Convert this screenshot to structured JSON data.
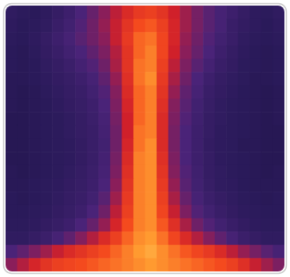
{
  "chart_data": {
    "type": "heatmap",
    "tick_labels": false,
    "color_range": [
      0,
      100
    ],
    "z": [
      [
        18,
        16,
        15,
        17,
        20,
        24,
        30,
        38,
        48,
        58,
        66,
        72,
        74,
        70,
        62,
        52,
        42,
        34,
        28,
        24,
        20,
        17,
        16,
        18
      ],
      [
        17,
        15,
        16,
        18,
        22,
        26,
        32,
        40,
        50,
        60,
        70,
        78,
        80,
        74,
        64,
        52,
        42,
        34,
        28,
        22,
        19,
        17,
        15,
        17
      ],
      [
        16,
        15,
        17,
        20,
        24,
        28,
        34,
        40,
        48,
        60,
        72,
        82,
        84,
        76,
        64,
        50,
        40,
        32,
        26,
        22,
        18,
        16,
        15,
        16
      ],
      [
        15,
        14,
        16,
        19,
        22,
        26,
        30,
        36,
        44,
        56,
        70,
        82,
        86,
        76,
        62,
        48,
        38,
        30,
        24,
        20,
        17,
        15,
        14,
        15
      ],
      [
        15,
        14,
        15,
        18,
        20,
        23,
        27,
        32,
        40,
        54,
        70,
        84,
        86,
        74,
        58,
        44,
        34,
        27,
        22,
        19,
        16,
        15,
        14,
        15
      ],
      [
        14,
        14,
        15,
        17,
        19,
        21,
        24,
        28,
        36,
        50,
        68,
        84,
        88,
        72,
        54,
        40,
        30,
        24,
        20,
        18,
        16,
        14,
        14,
        15
      ],
      [
        14,
        13,
        14,
        16,
        18,
        20,
        22,
        26,
        32,
        46,
        66,
        82,
        86,
        70,
        50,
        36,
        28,
        22,
        19,
        17,
        15,
        14,
        13,
        14
      ],
      [
        14,
        13,
        14,
        15,
        17,
        19,
        21,
        24,
        30,
        44,
        64,
        82,
        86,
        68,
        46,
        34,
        26,
        21,
        18,
        16,
        15,
        14,
        13,
        14
      ],
      [
        13,
        13,
        14,
        15,
        16,
        18,
        20,
        23,
        28,
        42,
        62,
        82,
        86,
        66,
        44,
        32,
        25,
        20,
        18,
        16,
        15,
        14,
        13,
        14
      ],
      [
        13,
        13,
        14,
        15,
        16,
        18,
        20,
        22,
        27,
        40,
        62,
        84,
        86,
        66,
        42,
        30,
        24,
        20,
        17,
        16,
        15,
        14,
        13,
        13
      ],
      [
        13,
        13,
        14,
        15,
        16,
        17,
        19,
        22,
        26,
        40,
        64,
        84,
        88,
        66,
        42,
        30,
        24,
        19,
        17,
        16,
        14,
        14,
        13,
        13
      ],
      [
        13,
        13,
        14,
        15,
        16,
        17,
        19,
        22,
        27,
        42,
        66,
        86,
        88,
        68,
        44,
        30,
        24,
        20,
        17,
        16,
        15,
        14,
        13,
        13
      ],
      [
        14,
        13,
        14,
        15,
        16,
        18,
        20,
        23,
        28,
        44,
        68,
        86,
        88,
        70,
        46,
        32,
        25,
        20,
        18,
        16,
        15,
        14,
        13,
        14
      ],
      [
        14,
        14,
        15,
        16,
        17,
        19,
        21,
        24,
        30,
        48,
        70,
        86,
        88,
        72,
        50,
        34,
        26,
        21,
        18,
        17,
        15,
        14,
        14,
        14
      ],
      [
        15,
        14,
        15,
        16,
        18,
        20,
        22,
        26,
        34,
        52,
        72,
        86,
        88,
        74,
        54,
        38,
        28,
        23,
        20,
        18,
        16,
        15,
        14,
        15
      ],
      [
        15,
        15,
        16,
        17,
        19,
        21,
        24,
        30,
        40,
        58,
        74,
        86,
        88,
        76,
        60,
        44,
        32,
        26,
        22,
        19,
        17,
        16,
        15,
        15
      ],
      [
        16,
        16,
        17,
        19,
        21,
        24,
        30,
        38,
        50,
        64,
        78,
        86,
        88,
        80,
        68,
        54,
        40,
        32,
        26,
        22,
        19,
        17,
        16,
        16
      ],
      [
        18,
        18,
        20,
        23,
        28,
        36,
        46,
        56,
        66,
        74,
        82,
        88,
        90,
        84,
        76,
        66,
        56,
        46,
        36,
        28,
        23,
        20,
        18,
        18
      ],
      [
        30,
        36,
        44,
        52,
        60,
        66,
        70,
        74,
        78,
        82,
        86,
        90,
        92,
        88,
        84,
        80,
        76,
        72,
        66,
        58,
        50,
        42,
        34,
        28
      ],
      [
        48,
        56,
        64,
        70,
        74,
        76,
        78,
        80,
        82,
        84,
        86,
        88,
        90,
        88,
        86,
        84,
        82,
        80,
        78,
        74,
        68,
        60,
        52,
        44
      ]
    ]
  }
}
